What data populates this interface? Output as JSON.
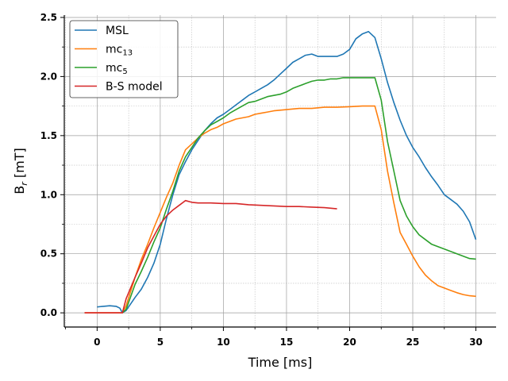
{
  "chart_data": {
    "type": "line",
    "title": "",
    "xlabel": "Time [ms]",
    "ylabel_main": "B",
    "ylabel_sub": "r",
    "ylabel_unit": " [mT]",
    "xlim": [
      -2.6,
      31.6
    ],
    "ylim": [
      -0.12,
      2.52
    ],
    "xticks": [
      0,
      5,
      10,
      15,
      20,
      25,
      30
    ],
    "xtick_labels": [
      "0",
      "5",
      "10",
      "15",
      "20",
      "25",
      "30"
    ],
    "yticks": [
      0.0,
      0.5,
      1.0,
      1.5,
      2.0,
      2.5
    ],
    "ytick_labels": [
      "0.0",
      "0.5",
      "1.0",
      "1.5",
      "2.0",
      "2.5"
    ],
    "grid": true,
    "legend_position": "top-left",
    "series": [
      {
        "name": "MSL",
        "label_main": "MSL",
        "label_sub": "",
        "color": "#1f77b4",
        "points": [
          [
            0,
            0.05
          ],
          [
            0.5,
            0.055
          ],
          [
            1,
            0.06
          ],
          [
            1.5,
            0.055
          ],
          [
            1.8,
            0.04
          ],
          [
            2,
            0.0
          ],
          [
            2.3,
            0.02
          ],
          [
            3,
            0.13
          ],
          [
            3.5,
            0.2
          ],
          [
            4,
            0.3
          ],
          [
            4.5,
            0.42
          ],
          [
            5,
            0.58
          ],
          [
            5.5,
            0.8
          ],
          [
            6,
            1.0
          ],
          [
            6.5,
            1.17
          ],
          [
            7,
            1.28
          ],
          [
            7.5,
            1.38
          ],
          [
            8,
            1.46
          ],
          [
            8.5,
            1.54
          ],
          [
            9,
            1.6
          ],
          [
            9.5,
            1.65
          ],
          [
            10,
            1.68
          ],
          [
            10.5,
            1.72
          ],
          [
            11,
            1.76
          ],
          [
            11.5,
            1.8
          ],
          [
            12,
            1.84
          ],
          [
            12.5,
            1.87
          ],
          [
            13,
            1.9
          ],
          [
            13.5,
            1.93
          ],
          [
            14,
            1.97
          ],
          [
            14.5,
            2.02
          ],
          [
            15,
            2.07
          ],
          [
            15.5,
            2.12
          ],
          [
            16,
            2.15
          ],
          [
            16.5,
            2.18
          ],
          [
            17,
            2.19
          ],
          [
            17.5,
            2.17
          ],
          [
            18,
            2.17
          ],
          [
            18.5,
            2.17
          ],
          [
            19,
            2.17
          ],
          [
            19.5,
            2.19
          ],
          [
            20,
            2.23
          ],
          [
            20.5,
            2.32
          ],
          [
            21,
            2.36
          ],
          [
            21.5,
            2.38
          ],
          [
            22,
            2.33
          ],
          [
            22.5,
            2.15
          ],
          [
            23,
            1.95
          ],
          [
            23.5,
            1.78
          ],
          [
            24,
            1.63
          ],
          [
            24.5,
            1.5
          ],
          [
            25,
            1.4
          ],
          [
            25.5,
            1.32
          ],
          [
            26,
            1.23
          ],
          [
            26.5,
            1.15
          ],
          [
            27,
            1.08
          ],
          [
            27.5,
            1.0
          ],
          [
            28,
            0.96
          ],
          [
            28.5,
            0.92
          ],
          [
            29,
            0.86
          ],
          [
            29.5,
            0.77
          ],
          [
            30,
            0.62
          ]
        ]
      },
      {
        "name": "mc13",
        "label_main": "mc",
        "label_sub": "13",
        "color": "#ff7f0e",
        "points": [
          [
            -1,
            0.0
          ],
          [
            0,
            0.0
          ],
          [
            1,
            0.0
          ],
          [
            2,
            0.0
          ],
          [
            2.3,
            0.06
          ],
          [
            3,
            0.3
          ],
          [
            3.5,
            0.45
          ],
          [
            4,
            0.58
          ],
          [
            4.5,
            0.72
          ],
          [
            5,
            0.85
          ],
          [
            5.5,
            0.98
          ],
          [
            6,
            1.1
          ],
          [
            6.5,
            1.25
          ],
          [
            7,
            1.38
          ],
          [
            7.5,
            1.43
          ],
          [
            8,
            1.48
          ],
          [
            8.5,
            1.52
          ],
          [
            9,
            1.55
          ],
          [
            9.5,
            1.57
          ],
          [
            10,
            1.6
          ],
          [
            10.5,
            1.62
          ],
          [
            11,
            1.64
          ],
          [
            11.5,
            1.65
          ],
          [
            12,
            1.66
          ],
          [
            12.5,
            1.68
          ],
          [
            13,
            1.69
          ],
          [
            13.5,
            1.7
          ],
          [
            14,
            1.71
          ],
          [
            15,
            1.72
          ],
          [
            16,
            1.73
          ],
          [
            17,
            1.73
          ],
          [
            18,
            1.74
          ],
          [
            19,
            1.74
          ],
          [
            20,
            1.745
          ],
          [
            21,
            1.75
          ],
          [
            22,
            1.75
          ],
          [
            22.5,
            1.55
          ],
          [
            23,
            1.2
          ],
          [
            23.5,
            0.93
          ],
          [
            24,
            0.68
          ],
          [
            24.5,
            0.58
          ],
          [
            25,
            0.48
          ],
          [
            25.5,
            0.39
          ],
          [
            26,
            0.32
          ],
          [
            26.5,
            0.27
          ],
          [
            27,
            0.23
          ],
          [
            27.5,
            0.21
          ],
          [
            28,
            0.19
          ],
          [
            28.5,
            0.17
          ],
          [
            29,
            0.155
          ],
          [
            29.5,
            0.145
          ],
          [
            30,
            0.14
          ]
        ]
      },
      {
        "name": "mc5",
        "label_main": "mc",
        "label_sub": "5",
        "color": "#2ca02c",
        "points": [
          [
            2,
            0.0
          ],
          [
            2.3,
            0.03
          ],
          [
            3,
            0.24
          ],
          [
            3.5,
            0.35
          ],
          [
            4,
            0.47
          ],
          [
            4.5,
            0.6
          ],
          [
            5,
            0.72
          ],
          [
            5.5,
            0.88
          ],
          [
            6,
            1.03
          ],
          [
            6.5,
            1.2
          ],
          [
            7,
            1.32
          ],
          [
            7.5,
            1.4
          ],
          [
            8,
            1.48
          ],
          [
            8.5,
            1.54
          ],
          [
            9,
            1.59
          ],
          [
            9.5,
            1.62
          ],
          [
            10,
            1.65
          ],
          [
            10.5,
            1.69
          ],
          [
            11,
            1.72
          ],
          [
            11.5,
            1.75
          ],
          [
            12,
            1.78
          ],
          [
            12.5,
            1.79
          ],
          [
            13,
            1.81
          ],
          [
            13.5,
            1.83
          ],
          [
            14,
            1.84
          ],
          [
            14.5,
            1.85
          ],
          [
            15,
            1.87
          ],
          [
            15.5,
            1.9
          ],
          [
            16,
            1.92
          ],
          [
            16.5,
            1.94
          ],
          [
            17,
            1.96
          ],
          [
            17.5,
            1.97
          ],
          [
            18,
            1.97
          ],
          [
            18.5,
            1.98
          ],
          [
            19,
            1.98
          ],
          [
            19.5,
            1.99
          ],
          [
            20,
            1.99
          ],
          [
            20.5,
            1.99
          ],
          [
            21,
            1.99
          ],
          [
            21.5,
            1.99
          ],
          [
            22,
            1.99
          ],
          [
            22.5,
            1.8
          ],
          [
            23,
            1.45
          ],
          [
            23.5,
            1.2
          ],
          [
            24,
            0.95
          ],
          [
            24.5,
            0.82
          ],
          [
            25,
            0.73
          ],
          [
            25.5,
            0.66
          ],
          [
            26,
            0.62
          ],
          [
            26.5,
            0.58
          ],
          [
            27,
            0.56
          ],
          [
            27.5,
            0.54
          ],
          [
            28,
            0.52
          ],
          [
            28.5,
            0.5
          ],
          [
            29,
            0.48
          ],
          [
            29.5,
            0.46
          ],
          [
            30,
            0.455
          ]
        ]
      },
      {
        "name": "B-S model",
        "label_main": "B-S model",
        "label_sub": "",
        "color": "#d62728",
        "points": [
          [
            -1,
            0.0
          ],
          [
            0,
            0.0
          ],
          [
            1,
            0.0
          ],
          [
            2,
            0.0
          ],
          [
            2.3,
            0.12
          ],
          [
            3,
            0.3
          ],
          [
            3.5,
            0.42
          ],
          [
            4,
            0.55
          ],
          [
            4.5,
            0.65
          ],
          [
            5,
            0.75
          ],
          [
            5.5,
            0.82
          ],
          [
            6,
            0.87
          ],
          [
            6.5,
            0.91
          ],
          [
            7,
            0.95
          ],
          [
            7.5,
            0.935
          ],
          [
            8,
            0.93
          ],
          [
            9,
            0.93
          ],
          [
            10,
            0.925
          ],
          [
            11,
            0.925
          ],
          [
            12,
            0.915
          ],
          [
            13,
            0.91
          ],
          [
            14,
            0.905
          ],
          [
            15,
            0.9
          ],
          [
            16,
            0.9
          ],
          [
            17,
            0.895
          ],
          [
            18,
            0.89
          ],
          [
            19,
            0.88
          ]
        ]
      }
    ]
  }
}
